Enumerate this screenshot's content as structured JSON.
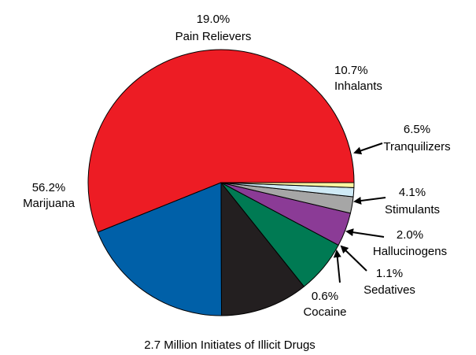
{
  "chart_data": {
    "type": "pie",
    "caption": "2.7 Million Initiates of Illicit Drugs",
    "slices": [
      {
        "label": "Marijuana",
        "pct_label": "56.2%",
        "value": 56.2,
        "color": "#ed1c24"
      },
      {
        "label": "Pain Relievers",
        "pct_label": "19.0%",
        "value": 19.0,
        "color": "#0060a8"
      },
      {
        "label": "Inhalants",
        "pct_label": "10.7%",
        "value": 10.7,
        "color": "#231f20"
      },
      {
        "label": "Tranquilizers",
        "pct_label": "6.5%",
        "value": 6.5,
        "color": "#007a53"
      },
      {
        "label": "Stimulants",
        "pct_label": "4.1%",
        "value": 4.1,
        "color": "#8b3b96"
      },
      {
        "label": "Hallucinogens",
        "pct_label": "2.0%",
        "value": 2.0,
        "color": "#a6a6a6"
      },
      {
        "label": "Sedatives",
        "pct_label": "1.1%",
        "value": 1.1,
        "color": "#cfeaf6"
      },
      {
        "label": "Cocaine",
        "pct_label": "0.6%",
        "value": 0.6,
        "color": "#fff7a3"
      }
    ]
  }
}
